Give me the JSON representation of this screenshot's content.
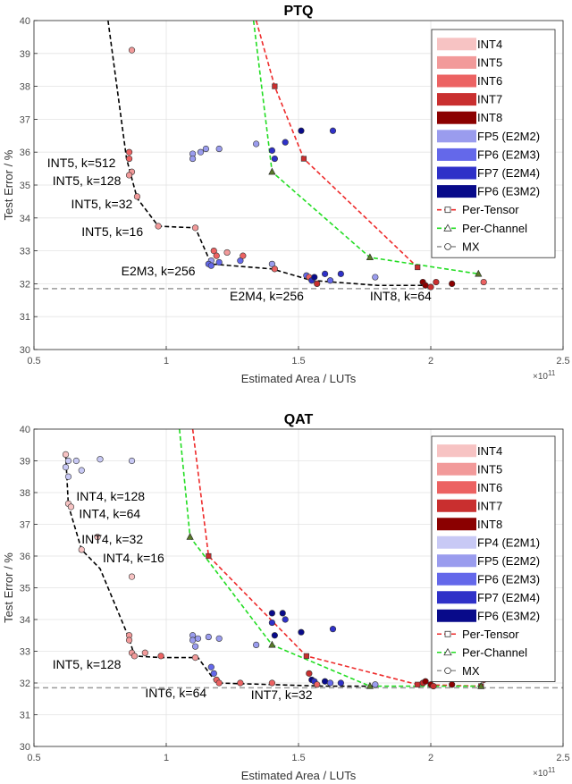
{
  "colors": {
    "INT4": "#f7c3c3",
    "INT5": "#f29a9a",
    "INT6": "#ec6262",
    "INT7": "#c92f2f",
    "INT8": "#8b0000",
    "FP4 (E2M1)": "#c8c9f5",
    "FP5 (E2M2)": "#9a9cee",
    "FP6 (E2M3)": "#6468ea",
    "FP7 (E2M4)": "#2f31c8",
    "FP6 (E3M2)": "#080a8a",
    "per_tensor": "#ee2b2b",
    "per_channel": "#22dd22",
    "mx": "#000000",
    "ref": "#9a9a9a"
  },
  "exponent_label": "×10",
  "exponent_power": "11",
  "chart_data": [
    {
      "id": "ptq",
      "type": "scatter",
      "title": "PTQ",
      "xlabel": "Estimated Area / LUTs",
      "ylabel": "Test Error / %",
      "xlim": [
        0.5,
        2.5
      ],
      "ylim": [
        30,
        40
      ],
      "xticks": [
        "0.5",
        "1",
        "1.5",
        "2",
        "2.5"
      ],
      "yticks": [
        "30",
        "31",
        "32",
        "33",
        "34",
        "35",
        "36",
        "37",
        "38",
        "39",
        "40"
      ],
      "reference_y": 31.85,
      "legend": [
        "INT4",
        "INT5",
        "INT6",
        "INT7",
        "INT8",
        "FP5 (E2M2)",
        "FP6 (E2M3)",
        "FP7 (E2M4)",
        "FP6 (E3M2)",
        "Per-Tensor",
        "Per-Channel",
        "MX"
      ],
      "per_tensor": {
        "x": [
          1.34,
          1.41,
          1.52,
          1.95
        ],
        "y": [
          40.0,
          38.0,
          35.8,
          32.5
        ]
      },
      "per_channel": {
        "x": [
          1.33,
          1.4,
          1.77,
          2.18
        ],
        "y": [
          40.0,
          35.4,
          32.8,
          32.3
        ]
      },
      "mx": {
        "x": [
          0.78,
          0.85,
          0.89,
          0.97,
          1.11,
          1.17,
          1.4,
          1.55,
          1.8,
          2.0
        ],
        "y": [
          40.0,
          35.8,
          34.6,
          33.75,
          33.7,
          32.6,
          32.45,
          32.1,
          31.95,
          31.95
        ]
      },
      "points": [
        {
          "x": 0.87,
          "y": 39.1,
          "c": "INT5"
        },
        {
          "x": 0.86,
          "y": 36.0,
          "c": "INT6"
        },
        {
          "x": 0.86,
          "y": 35.8,
          "c": "INT6"
        },
        {
          "x": 0.87,
          "y": 35.4,
          "c": "INT5"
        },
        {
          "x": 0.86,
          "y": 35.3,
          "c": "INT5"
        },
        {
          "x": 0.89,
          "y": 34.65,
          "c": "INT5"
        },
        {
          "x": 0.97,
          "y": 33.75,
          "c": "INT5"
        },
        {
          "x": 1.11,
          "y": 33.7,
          "c": "INT5"
        },
        {
          "x": 1.1,
          "y": 35.95,
          "c": "FP5 (E2M2)"
        },
        {
          "x": 1.1,
          "y": 35.8,
          "c": "FP5 (E2M2)"
        },
        {
          "x": 1.13,
          "y": 36.0,
          "c": "FP5 (E2M2)"
        },
        {
          "x": 1.15,
          "y": 36.1,
          "c": "FP5 (E2M2)"
        },
        {
          "x": 1.2,
          "y": 36.1,
          "c": "FP5 (E2M2)"
        },
        {
          "x": 1.34,
          "y": 36.25,
          "c": "FP5 (E2M2)"
        },
        {
          "x": 1.4,
          "y": 36.05,
          "c": "FP7 (E2M4)"
        },
        {
          "x": 1.41,
          "y": 35.8,
          "c": "FP7 (E2M4)"
        },
        {
          "x": 1.45,
          "y": 36.3,
          "c": "FP7 (E2M4)"
        },
        {
          "x": 1.51,
          "y": 36.65,
          "c": "FP6 (E3M2)"
        },
        {
          "x": 1.63,
          "y": 36.65,
          "c": "FP7 (E2M4)"
        },
        {
          "x": 1.18,
          "y": 33.0,
          "c": "INT6"
        },
        {
          "x": 1.19,
          "y": 32.85,
          "c": "INT6"
        },
        {
          "x": 1.17,
          "y": 32.7,
          "c": "FP5 (E2M2)"
        },
        {
          "x": 1.16,
          "y": 32.6,
          "c": "FP6 (E2M3)"
        },
        {
          "x": 1.17,
          "y": 32.55,
          "c": "FP6 (E2M3)"
        },
        {
          "x": 1.2,
          "y": 32.65,
          "c": "FP6 (E2M3)"
        },
        {
          "x": 1.23,
          "y": 32.95,
          "c": "INT5"
        },
        {
          "x": 1.28,
          "y": 32.7,
          "c": "FP6 (E2M3)"
        },
        {
          "x": 1.29,
          "y": 32.85,
          "c": "INT6"
        },
        {
          "x": 1.4,
          "y": 32.6,
          "c": "FP5 (E2M2)"
        },
        {
          "x": 1.41,
          "y": 32.45,
          "c": "INT6"
        },
        {
          "x": 1.53,
          "y": 32.25,
          "c": "FP6 (E2M3)"
        },
        {
          "x": 1.54,
          "y": 32.2,
          "c": "INT6"
        },
        {
          "x": 1.55,
          "y": 32.1,
          "c": "FP7 (E2M4)"
        },
        {
          "x": 1.56,
          "y": 32.2,
          "c": "FP6 (E3M2)"
        },
        {
          "x": 1.57,
          "y": 32.0,
          "c": "INT7"
        },
        {
          "x": 1.6,
          "y": 32.3,
          "c": "FP7 (E2M4)"
        },
        {
          "x": 1.62,
          "y": 32.1,
          "c": "FP6 (E2M3)"
        },
        {
          "x": 1.66,
          "y": 32.3,
          "c": "FP7 (E2M4)"
        },
        {
          "x": 1.79,
          "y": 32.2,
          "c": "FP5 (E2M2)"
        },
        {
          "x": 1.97,
          "y": 32.05,
          "c": "INT8"
        },
        {
          "x": 1.98,
          "y": 31.95,
          "c": "INT8"
        },
        {
          "x": 2.0,
          "y": 31.9,
          "c": "INT7"
        },
        {
          "x": 2.02,
          "y": 32.05,
          "c": "INT7"
        },
        {
          "x": 2.08,
          "y": 32.0,
          "c": "INT8"
        },
        {
          "x": 2.2,
          "y": 32.05,
          "c": "INT6"
        }
      ],
      "annotations": [
        {
          "text": "INT5, k=512",
          "x": 0.55,
          "y": 35.55,
          "anchor": "start"
        },
        {
          "text": "INT5, k=128",
          "x": 0.57,
          "y": 35.0,
          "anchor": "start"
        },
        {
          "text": "INT5, k=32",
          "x": 0.64,
          "y": 34.3,
          "anchor": "start"
        },
        {
          "text": "INT5, k=16",
          "x": 0.68,
          "y": 33.45,
          "anchor": "start"
        },
        {
          "text": "E2M3, k=256",
          "x": 0.83,
          "y": 32.25,
          "anchor": "start"
        },
        {
          "text": "E2M4, k=256",
          "x": 1.24,
          "y": 31.5,
          "anchor": "start"
        },
        {
          "text": "INT8, k=64",
          "x": 1.77,
          "y": 31.5,
          "anchor": "start"
        }
      ]
    },
    {
      "id": "qat",
      "type": "scatter",
      "title": "QAT",
      "xlabel": "Estimated Area / LUTs",
      "ylabel": "Test Error / %",
      "xlim": [
        0.5,
        2.5
      ],
      "ylim": [
        30,
        40
      ],
      "xticks": [
        "0.5",
        "1",
        "1.5",
        "2",
        "2.5"
      ],
      "yticks": [
        "30",
        "31",
        "32",
        "33",
        "34",
        "35",
        "36",
        "37",
        "38",
        "39",
        "40"
      ],
      "reference_y": 31.85,
      "legend": [
        "INT4",
        "INT5",
        "INT6",
        "INT7",
        "INT8",
        "FP4 (E2M1)",
        "FP5 (E2M2)",
        "FP6 (E2M3)",
        "FP7 (E2M4)",
        "FP6 (E3M2)",
        "Per-Tensor",
        "Per-Channel",
        "MX"
      ],
      "per_tensor": {
        "x": [
          1.1,
          1.16,
          1.53,
          1.95,
          2.19
        ],
        "y": [
          40.0,
          36.0,
          32.85,
          31.95,
          31.9
        ]
      },
      "per_channel": {
        "x": [
          1.05,
          1.09,
          1.4,
          1.77,
          2.19
        ],
        "y": [
          40.0,
          36.6,
          33.2,
          31.9,
          31.9
        ]
      },
      "mx": {
        "x": [
          0.62,
          0.63,
          0.68,
          0.75,
          0.86,
          0.88,
          0.98,
          1.12,
          1.19,
          1.6,
          1.8
        ],
        "y": [
          39.2,
          37.6,
          36.2,
          35.6,
          33.4,
          32.85,
          32.8,
          32.8,
          32.0,
          31.9,
          31.9
        ]
      },
      "points": [
        {
          "x": 0.62,
          "y": 39.2,
          "c": "INT4"
        },
        {
          "x": 0.62,
          "y": 38.8,
          "c": "FP4 (E2M1)"
        },
        {
          "x": 0.63,
          "y": 39.0,
          "c": "FP4 (E2M1)"
        },
        {
          "x": 0.63,
          "y": 38.5,
          "c": "FP4 (E2M1)"
        },
        {
          "x": 0.66,
          "y": 39.0,
          "c": "FP4 (E2M1)"
        },
        {
          "x": 0.68,
          "y": 38.7,
          "c": "FP4 (E2M1)"
        },
        {
          "x": 0.75,
          "y": 39.05,
          "c": "FP4 (E2M1)"
        },
        {
          "x": 0.87,
          "y": 39.0,
          "c": "FP4 (E2M1)"
        },
        {
          "x": 0.63,
          "y": 37.65,
          "c": "INT4"
        },
        {
          "x": 0.64,
          "y": 37.55,
          "c": "INT4"
        },
        {
          "x": 0.74,
          "y": 36.6,
          "c": "INT4"
        },
        {
          "x": 0.68,
          "y": 36.2,
          "c": "INT4"
        },
        {
          "x": 0.87,
          "y": 35.35,
          "c": "INT4"
        },
        {
          "x": 0.86,
          "y": 33.5,
          "c": "INT5"
        },
        {
          "x": 0.86,
          "y": 33.35,
          "c": "INT5"
        },
        {
          "x": 0.87,
          "y": 32.95,
          "c": "INT5"
        },
        {
          "x": 0.88,
          "y": 32.85,
          "c": "INT5"
        },
        {
          "x": 0.92,
          "y": 32.95,
          "c": "INT5"
        },
        {
          "x": 0.98,
          "y": 32.85,
          "c": "INT6"
        },
        {
          "x": 1.11,
          "y": 32.8,
          "c": "INT5"
        },
        {
          "x": 1.1,
          "y": 33.5,
          "c": "FP5 (E2M2)"
        },
        {
          "x": 1.1,
          "y": 33.35,
          "c": "FP5 (E2M2)"
        },
        {
          "x": 1.11,
          "y": 33.15,
          "c": "FP5 (E2M2)"
        },
        {
          "x": 1.12,
          "y": 33.4,
          "c": "FP5 (E2M2)"
        },
        {
          "x": 1.16,
          "y": 33.45,
          "c": "FP5 (E2M2)"
        },
        {
          "x": 1.2,
          "y": 33.4,
          "c": "FP5 (E2M2)"
        },
        {
          "x": 1.34,
          "y": 33.2,
          "c": "FP5 (E2M2)"
        },
        {
          "x": 1.4,
          "y": 34.2,
          "c": "FP6 (E3M2)"
        },
        {
          "x": 1.4,
          "y": 33.9,
          "c": "FP7 (E2M4)"
        },
        {
          "x": 1.41,
          "y": 33.5,
          "c": "FP6 (E3M2)"
        },
        {
          "x": 1.44,
          "y": 34.2,
          "c": "FP6 (E3M2)"
        },
        {
          "x": 1.45,
          "y": 34.0,
          "c": "FP7 (E2M4)"
        },
        {
          "x": 1.51,
          "y": 33.6,
          "c": "FP6 (E3M2)"
        },
        {
          "x": 1.63,
          "y": 33.7,
          "c": "FP7 (E2M4)"
        },
        {
          "x": 1.17,
          "y": 32.5,
          "c": "FP6 (E2M3)"
        },
        {
          "x": 1.18,
          "y": 32.3,
          "c": "FP6 (E2M3)"
        },
        {
          "x": 1.19,
          "y": 32.1,
          "c": "INT6"
        },
        {
          "x": 1.2,
          "y": 32.0,
          "c": "INT6"
        },
        {
          "x": 1.28,
          "y": 32.0,
          "c": "INT6"
        },
        {
          "x": 1.4,
          "y": 32.0,
          "c": "INT6"
        },
        {
          "x": 1.54,
          "y": 32.3,
          "c": "INT7"
        },
        {
          "x": 1.55,
          "y": 32.1,
          "c": "FP6 (E3M2)"
        },
        {
          "x": 1.56,
          "y": 32.05,
          "c": "FP7 (E2M4)"
        },
        {
          "x": 1.57,
          "y": 31.95,
          "c": "INT6"
        },
        {
          "x": 1.6,
          "y": 32.05,
          "c": "FP6 (E3M2)"
        },
        {
          "x": 1.62,
          "y": 32.0,
          "c": "FP6 (E2M3)"
        },
        {
          "x": 1.66,
          "y": 32.0,
          "c": "FP7 (E2M4)"
        },
        {
          "x": 1.79,
          "y": 31.95,
          "c": "FP5 (E2M2)"
        },
        {
          "x": 1.97,
          "y": 32.0,
          "c": "INT7"
        },
        {
          "x": 1.98,
          "y": 32.05,
          "c": "INT8"
        },
        {
          "x": 2.0,
          "y": 31.95,
          "c": "INT8"
        },
        {
          "x": 2.01,
          "y": 31.9,
          "c": "INT7"
        },
        {
          "x": 2.08,
          "y": 31.95,
          "c": "INT8"
        },
        {
          "x": 2.2,
          "y": 32.1,
          "c": "INT7"
        }
      ],
      "annotations": [
        {
          "text": "INT4, k=128",
          "x": 0.66,
          "y": 37.75,
          "anchor": "start"
        },
        {
          "text": "INT4, k=64",
          "x": 0.67,
          "y": 37.2,
          "anchor": "start"
        },
        {
          "text": "INT4, k=32",
          "x": 0.68,
          "y": 36.4,
          "anchor": "start"
        },
        {
          "text": "INT4, k=16",
          "x": 0.76,
          "y": 35.8,
          "anchor": "start"
        },
        {
          "text": "INT5, k=128",
          "x": 0.57,
          "y": 32.45,
          "anchor": "start"
        },
        {
          "text": "INT6, k=64",
          "x": 0.92,
          "y": 31.55,
          "anchor": "start"
        },
        {
          "text": "INT7, k=32",
          "x": 1.32,
          "y": 31.5,
          "anchor": "start"
        }
      ]
    }
  ]
}
